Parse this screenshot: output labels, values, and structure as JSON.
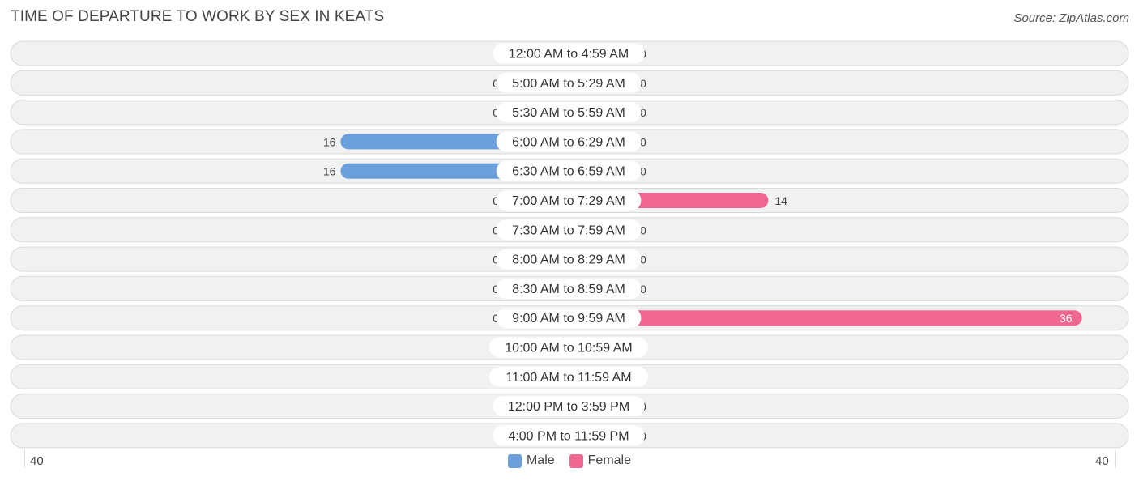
{
  "title": "TIME OF DEPARTURE TO WORK BY SEX IN KEATS",
  "source": "Source: ZipAtlas.com",
  "colors": {
    "male": "#6a9fdc",
    "male_zero": "#adc9ec",
    "female": "#f06892",
    "female_zero": "#f5a9c2",
    "row_bg": "#f1f1f1",
    "row_border": "#d9d9d9"
  },
  "axis": {
    "left_label": "40",
    "right_label": "40",
    "max": 40
  },
  "legend": {
    "male": "Male",
    "female": "Female"
  },
  "chart_data": {
    "type": "bar",
    "orientation": "horizontal-diverging",
    "categories": [
      "12:00 AM to 4:59 AM",
      "5:00 AM to 5:29 AM",
      "5:30 AM to 5:59 AM",
      "6:00 AM to 6:29 AM",
      "6:30 AM to 6:59 AM",
      "7:00 AM to 7:29 AM",
      "7:30 AM to 7:59 AM",
      "8:00 AM to 8:29 AM",
      "8:30 AM to 8:59 AM",
      "9:00 AM to 9:59 AM",
      "10:00 AM to 10:59 AM",
      "11:00 AM to 11:59 AM",
      "12:00 PM to 3:59 PM",
      "4:00 PM to 11:59 PM"
    ],
    "series": [
      {
        "name": "Male",
        "values": [
          0,
          0,
          0,
          16,
          16,
          0,
          0,
          0,
          0,
          0,
          0,
          0,
          0,
          0
        ]
      },
      {
        "name": "Female",
        "values": [
          0,
          0,
          0,
          0,
          0,
          14,
          0,
          0,
          0,
          36,
          0,
          0,
          0,
          0
        ]
      }
    ],
    "xlim": [
      -40,
      40
    ],
    "legend_position": "bottom-center"
  }
}
